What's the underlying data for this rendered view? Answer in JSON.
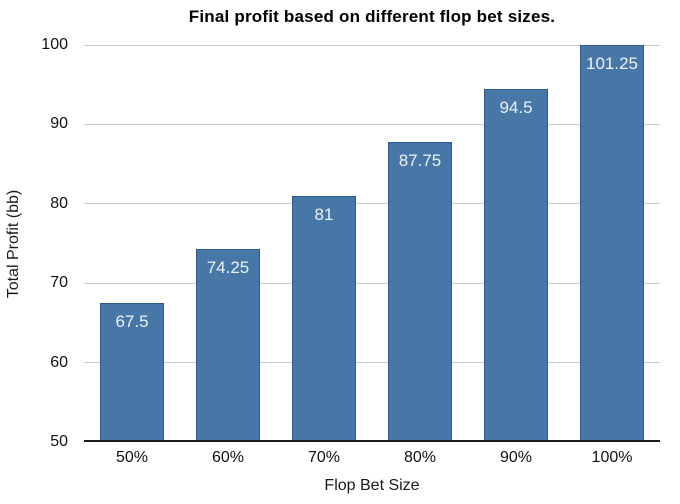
{
  "chart_data": {
    "type": "bar",
    "title": "Final profit based on different flop bet sizes.",
    "xlabel": "Flop Bet Size",
    "ylabel": "Total Profit (bb)",
    "categories": [
      "50%",
      "60%",
      "70%",
      "80%",
      "90%",
      "100%"
    ],
    "values": [
      67.5,
      74.25,
      81,
      87.75,
      94.5,
      101.25
    ],
    "bar_labels": [
      "67.5",
      "74.25",
      "81",
      "87.75",
      "94.5",
      "101.25"
    ],
    "yticks": [
      50,
      60,
      70,
      80,
      90,
      100
    ],
    "ylim": [
      50,
      100
    ],
    "grid": true,
    "legend": "none",
    "note_clipped_bar": "101.25 bar is clipped at axis top of 100",
    "colors": {
      "bar_fill": "#4677a6",
      "bar_border": "#2d5c8c",
      "bar_label_text": "#eef2f7",
      "gridline": "#c9c9c9",
      "baseline": "#1c1c1c",
      "axis_text": "#111111",
      "title_text": "#000000",
      "background": "#ffffff"
    }
  }
}
